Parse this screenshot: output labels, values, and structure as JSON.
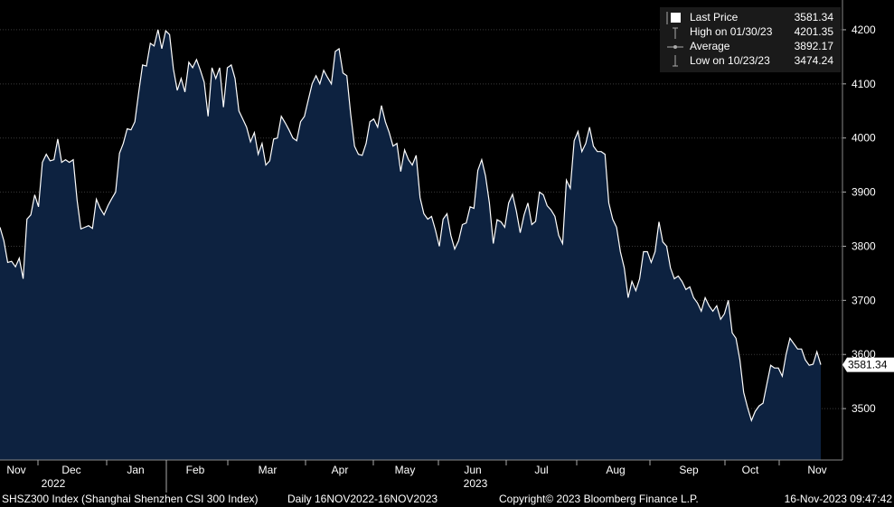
{
  "chart_data": {
    "type": "area",
    "ticker": "SHSZ300 Index (Shanghai Shenzhen CSI 300 Index)",
    "period": "Daily 16NOV2022-16NOV2023",
    "copyright": "Copyright© 2023 Bloomberg Finance L.P.",
    "timestamp": "16-Nov-2023 09:47:42",
    "y_ticks": [
      "3500",
      "3600",
      "3700",
      "3800",
      "3900",
      "4000",
      "4100",
      "4200"
    ],
    "ylim": [
      3405,
      4255
    ],
    "x_ticks": [
      "Nov",
      "Dec",
      "Jan",
      "Feb",
      "Mar",
      "Apr",
      "May",
      "Jun",
      "Jul",
      "Aug",
      "Sep",
      "Oct",
      "Nov"
    ],
    "year_labels": [
      "2022",
      "2023"
    ],
    "last_price_label": "3581.34",
    "legend": [
      {
        "label": "Last Price",
        "value": "3581.34"
      },
      {
        "label": "High on 01/30/23",
        "value": "4201.35"
      },
      {
        "label": "Average",
        "value": "3892.17"
      },
      {
        "label": "Low on 10/23/23",
        "value": "3474.24"
      }
    ],
    "colors": {
      "line": "#ffffff",
      "fill": "#0d2240",
      "background": "#000000",
      "grid": "#3a3a3a"
    },
    "series": [
      {
        "values": [
          3835,
          3810,
          3770,
          3772,
          3762,
          3778,
          3740,
          3850,
          3858,
          3895,
          3873,
          3955,
          3970,
          3958,
          3960,
          3998,
          3955,
          3960,
          3955,
          3960,
          3885,
          3832,
          3835,
          3838,
          3833,
          3887,
          3870,
          3858,
          3875,
          3888,
          3900,
          3972,
          3990,
          4017,
          4015,
          4030,
          4085,
          4135,
          4133,
          4175,
          4170,
          4200,
          4165,
          4198,
          4191,
          4128,
          4088,
          4110,
          4085,
          4140,
          4130,
          4145,
          4125,
          4103,
          4040,
          4130,
          4110,
          4130,
          4057,
          4130,
          4135,
          4110,
          4050,
          4035,
          4020,
          3993,
          4010,
          3970,
          3990,
          3950,
          3958,
          3998,
          4000,
          4040,
          4028,
          4015,
          4000,
          3995,
          4030,
          4040,
          4070,
          4100,
          4115,
          4100,
          4125,
          4112,
          4100,
          4160,
          4165,
          4120,
          4115,
          4045,
          3985,
          3970,
          3968,
          3990,
          4030,
          4035,
          4020,
          4060,
          4030,
          4010,
          3985,
          3990,
          3938,
          3978,
          3960,
          3950,
          3968,
          3890,
          3860,
          3850,
          3855,
          3830,
          3800,
          3850,
          3860,
          3820,
          3795,
          3810,
          3840,
          3843,
          3873,
          3870,
          3940,
          3960,
          3930,
          3880,
          3805,
          3849,
          3845,
          3835,
          3880,
          3896,
          3865,
          3825,
          3858,
          3880,
          3840,
          3846,
          3900,
          3895,
          3875,
          3867,
          3855,
          3820,
          3805,
          3922,
          3907,
          3995,
          4012,
          3975,
          3990,
          4020,
          3985,
          3975,
          3975,
          3970,
          3880,
          3850,
          3835,
          3790,
          3760,
          3705,
          3735,
          3718,
          3740,
          3790,
          3790,
          3770,
          3790,
          3845,
          3808,
          3800,
          3760,
          3740,
          3745,
          3735,
          3720,
          3725,
          3705,
          3695,
          3680,
          3705,
          3690,
          3680,
          3690,
          3665,
          3675,
          3700,
          3640,
          3630,
          3590,
          3530,
          3502,
          3478,
          3495,
          3505,
          3510,
          3545,
          3580,
          3575,
          3575,
          3560,
          3600,
          3630,
          3620,
          3610,
          3610,
          3590,
          3580,
          3582,
          3605,
          3581
        ]
      }
    ]
  }
}
